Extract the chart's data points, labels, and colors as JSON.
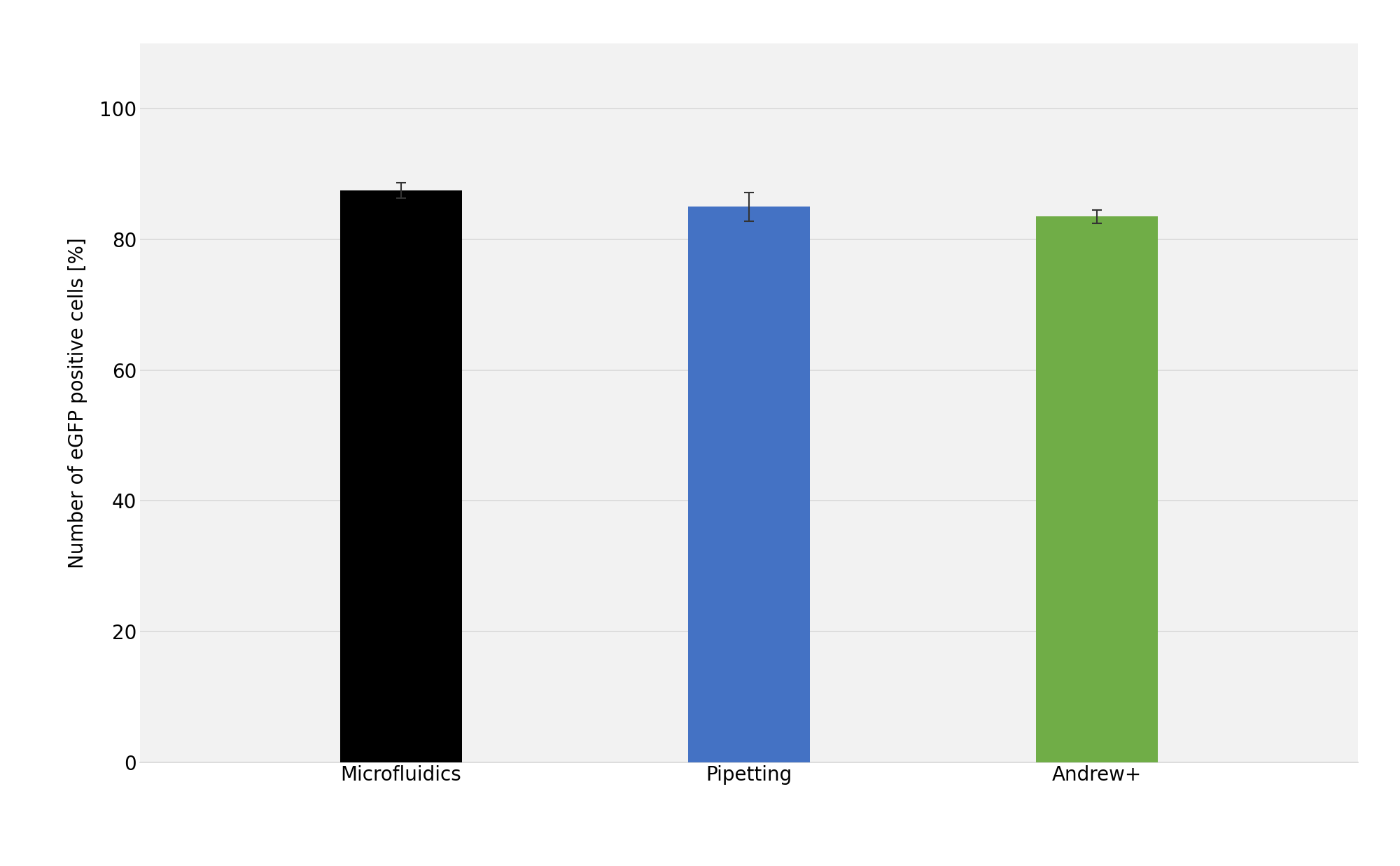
{
  "categories": [
    "Microfluidics",
    "Pipetting",
    "Andrew+"
  ],
  "values": [
    87.5,
    85.0,
    83.5
  ],
  "errors": [
    1.2,
    2.2,
    1.0
  ],
  "bar_colors": [
    "#000000",
    "#4472C4",
    "#70AD47"
  ],
  "bar_width": 0.35,
  "ylabel": "Number of eGFP positive cells [%]",
  "ylim": [
    0,
    110
  ],
  "yticks": [
    0,
    20,
    40,
    60,
    80,
    100
  ],
  "background_color": "#ffffff",
  "plot_bg_color": "#f2f2f2",
  "grid_color": "#d9d9d9",
  "ylabel_fontsize": 20,
  "tick_fontsize": 20,
  "xtick_fontsize": 20,
  "error_capsize": 5,
  "error_linewidth": 1.5,
  "spine_color": "#d9d9d9"
}
